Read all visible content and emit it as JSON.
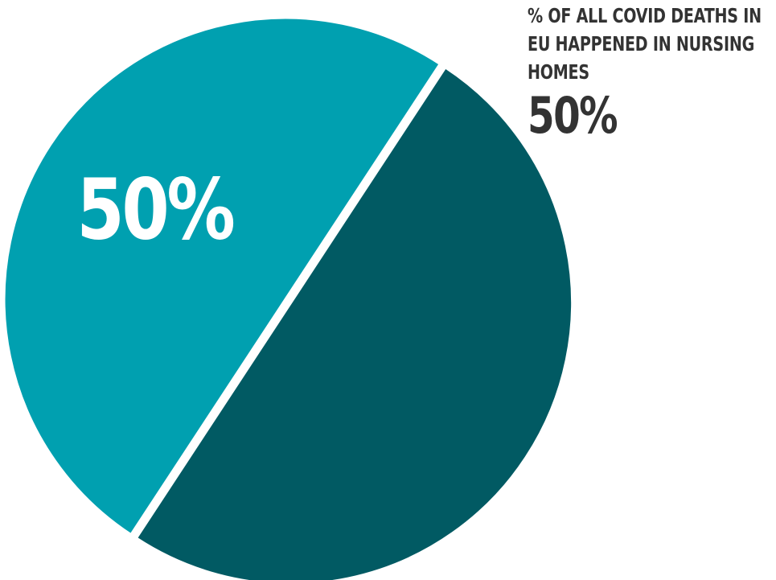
{
  "chart_data": {
    "type": "pie",
    "slices": [
      {
        "label": "50%",
        "value": 50,
        "color": "#015a63"
      },
      {
        "label": "50%",
        "value": 50,
        "color": "#00a0b0"
      }
    ],
    "annotation": {
      "text": "% of all covid deaths in EU happened in nursing homes",
      "value": "50%"
    }
  }
}
